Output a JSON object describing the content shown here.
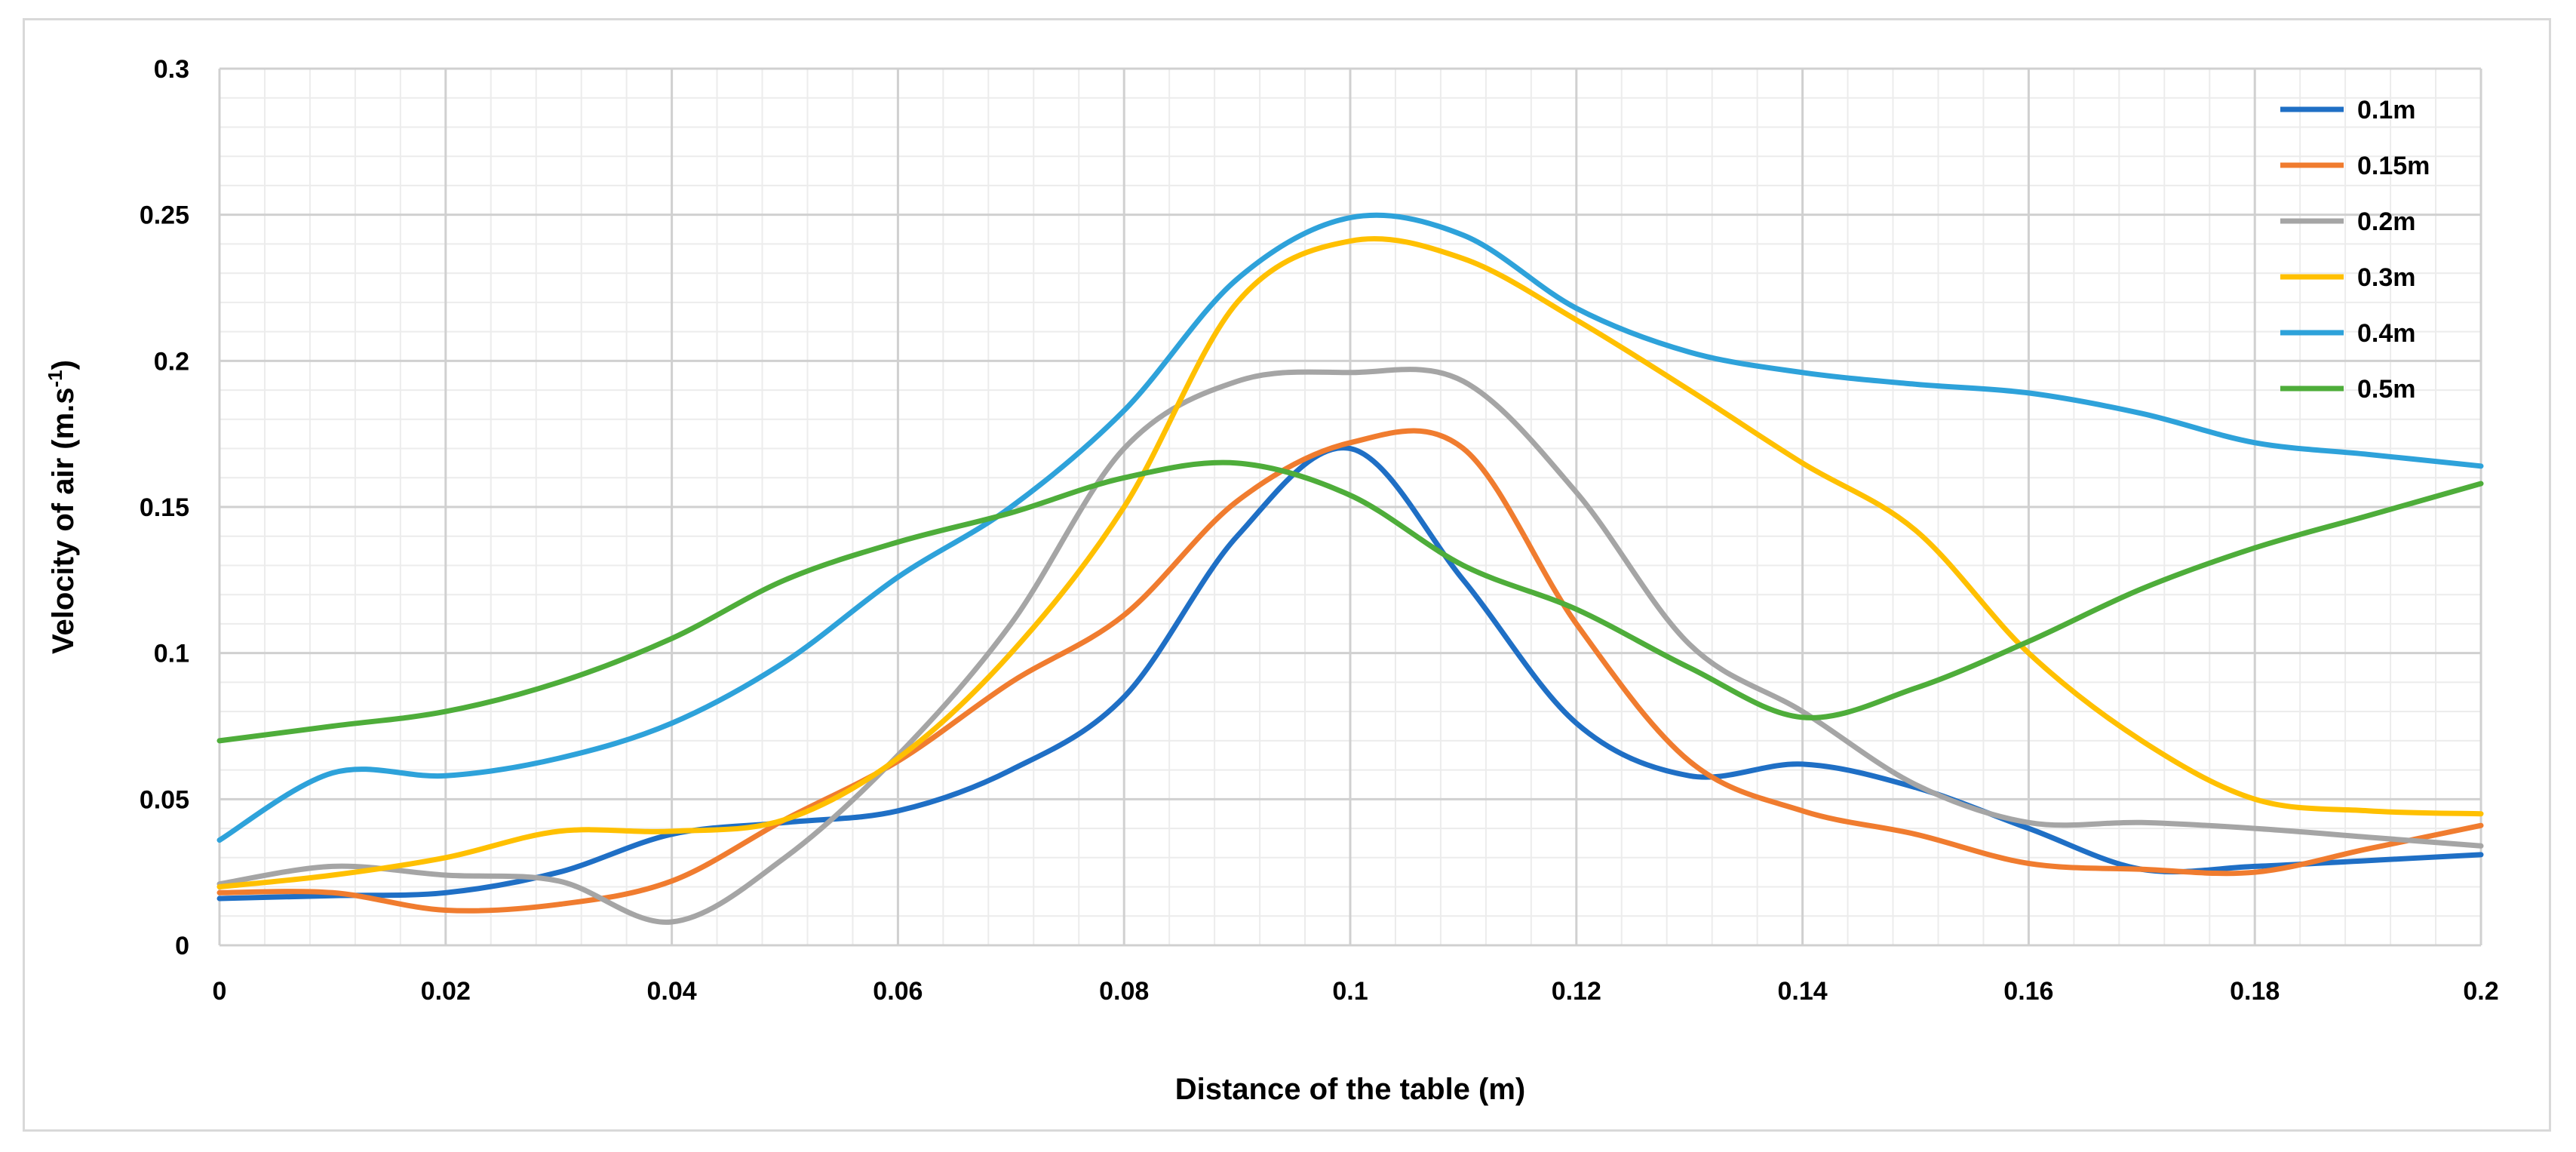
{
  "chart_data": {
    "type": "line",
    "title": "",
    "xlabel": "Distance of the table (m)",
    "ylabel_main": "Velocity of air (m.s",
    "ylabel_sup": "-1",
    "ylabel_end": ")",
    "xlim": [
      0,
      0.2
    ],
    "ylim": [
      0,
      0.3
    ],
    "x_ticks": [
      0,
      0.02,
      0.04,
      0.06,
      0.08,
      0.1,
      0.12,
      0.14,
      0.16,
      0.18,
      0.2
    ],
    "x_tick_labels": [
      "0",
      "0.02",
      "0.04",
      "0.06",
      "0.08",
      "0.1",
      "0.12",
      "0.14",
      "0.16",
      "0.18",
      "0.2"
    ],
    "y_ticks": [
      0,
      0.05,
      0.1,
      0.15,
      0.2,
      0.25,
      0.3
    ],
    "y_tick_labels": [
      "0",
      "0.05",
      "0.1",
      "0.15",
      "0.2",
      "0.25",
      "0.3"
    ],
    "grid": true,
    "minor_grid": true,
    "legend_position": "top-right",
    "x": [
      0,
      0.01,
      0.02,
      0.03,
      0.04,
      0.05,
      0.06,
      0.07,
      0.08,
      0.09,
      0.1,
      0.11,
      0.12,
      0.13,
      0.14,
      0.15,
      0.16,
      0.17,
      0.18,
      0.19,
      0.2
    ],
    "series": [
      {
        "name": "0.1m",
        "color": "#1f6fc5",
        "values": [
          0.016,
          0.017,
          0.018,
          0.025,
          0.038,
          0.042,
          0.046,
          0.06,
          0.085,
          0.14,
          0.17,
          0.125,
          0.076,
          0.058,
          0.062,
          0.054,
          0.04,
          0.026,
          0.027,
          0.029,
          0.031
        ]
      },
      {
        "name": "0.15m",
        "color": "#f07c2f",
        "values": [
          0.018,
          0.018,
          0.012,
          0.014,
          0.022,
          0.043,
          0.063,
          0.09,
          0.113,
          0.152,
          0.172,
          0.17,
          0.11,
          0.063,
          0.046,
          0.038,
          0.028,
          0.026,
          0.025,
          0.033,
          0.041
        ]
      },
      {
        "name": "0.2m",
        "color": "#a5a5a5",
        "values": [
          0.021,
          0.027,
          0.024,
          0.022,
          0.008,
          0.03,
          0.065,
          0.11,
          0.17,
          0.193,
          0.196,
          0.193,
          0.155,
          0.103,
          0.08,
          0.055,
          0.042,
          0.042,
          0.04,
          0.037,
          0.034
        ]
      },
      {
        "name": "0.3m",
        "color": "#ffc000",
        "values": [
          0.02,
          0.024,
          0.03,
          0.039,
          0.039,
          0.043,
          0.064,
          0.1,
          0.15,
          0.22,
          0.241,
          0.235,
          0.214,
          0.19,
          0.165,
          0.142,
          0.1,
          0.07,
          0.05,
          0.046,
          0.045
        ]
      },
      {
        "name": "0.4m",
        "color": "#2ea2da",
        "values": [
          0.036,
          0.059,
          0.058,
          0.064,
          0.076,
          0.097,
          0.126,
          0.15,
          0.183,
          0.228,
          0.249,
          0.243,
          0.218,
          0.203,
          0.196,
          0.192,
          0.189,
          0.182,
          0.172,
          0.168,
          0.164
        ]
      },
      {
        "name": "0.5m",
        "color": "#4ead3a",
        "values": [
          0.07,
          0.075,
          0.08,
          0.09,
          0.105,
          0.125,
          0.138,
          0.148,
          0.16,
          0.165,
          0.154,
          0.13,
          0.115,
          0.095,
          0.078,
          0.088,
          0.104,
          0.122,
          0.136,
          0.147,
          0.158
        ]
      }
    ]
  }
}
